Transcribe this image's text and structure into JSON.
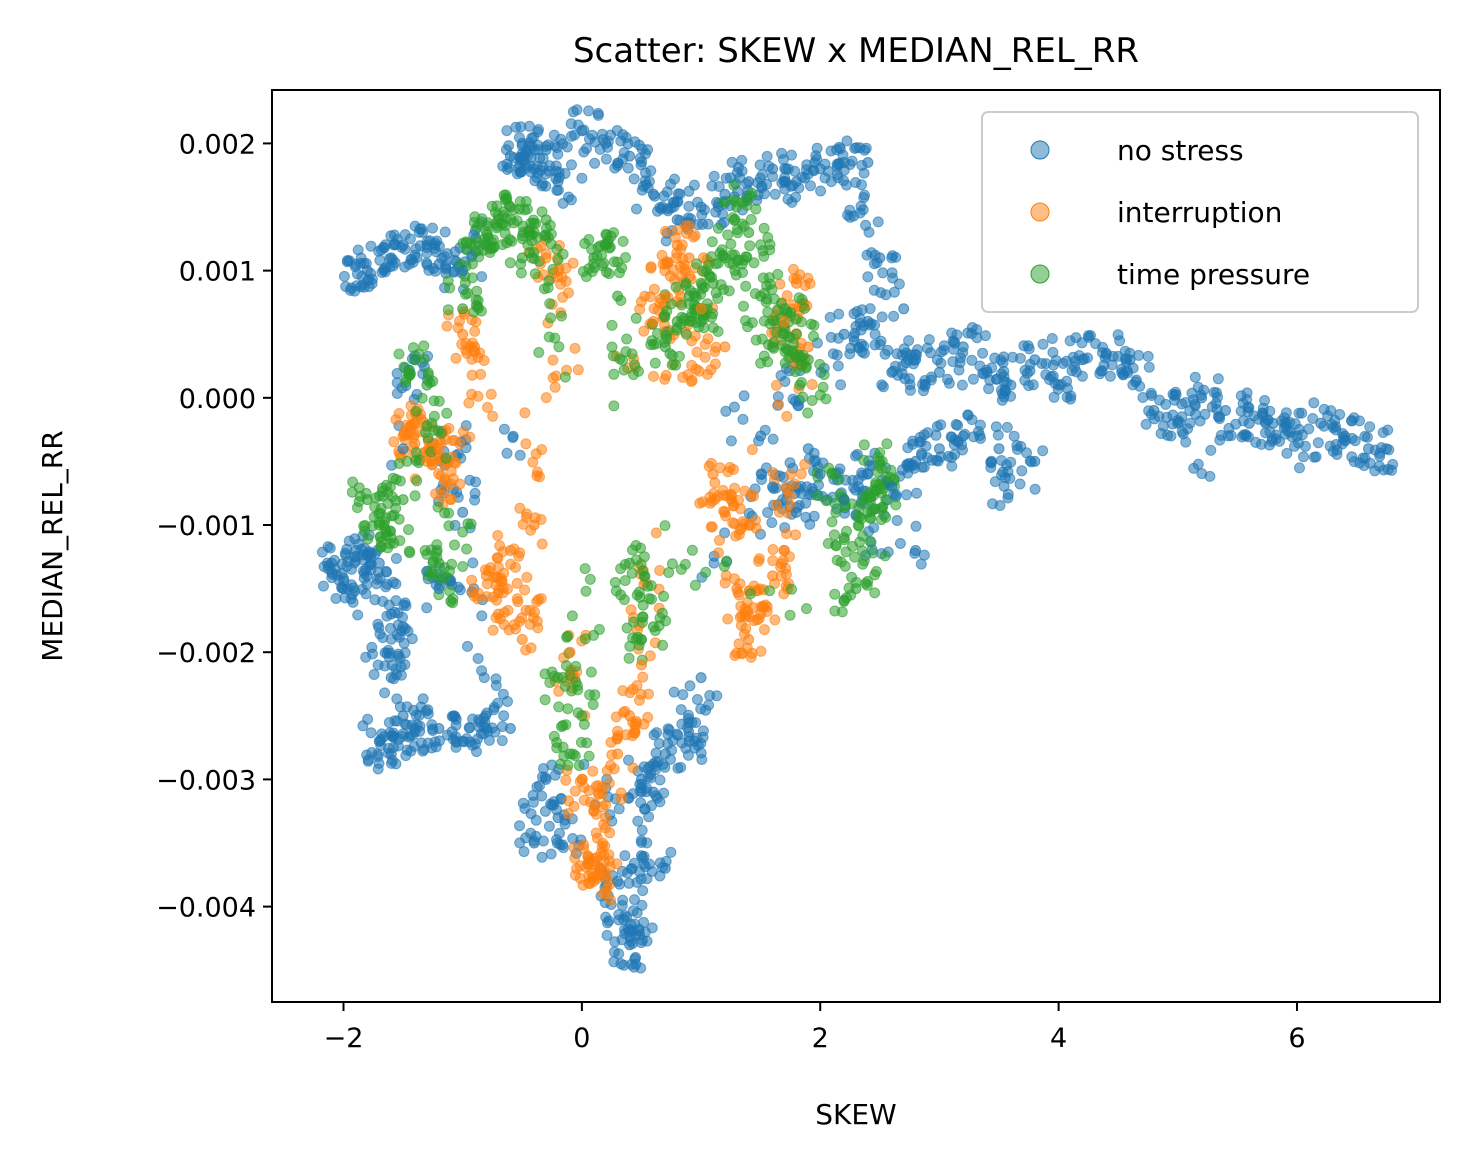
{
  "chart_data": {
    "type": "scatter",
    "title": "Scatter: SKEW x MEDIAN_REL_RR",
    "xlabel": "SKEW",
    "ylabel": "MEDIAN_REL_RR",
    "xlim": [
      -2.6,
      7.2
    ],
    "ylim": [
      -0.00475,
      0.00242
    ],
    "xticks": [
      -2,
      0,
      2,
      4,
      6
    ],
    "xtick_labels": [
      "−2",
      "0",
      "2",
      "4",
      "6"
    ],
    "yticks": [
      0.002,
      0.001,
      0.0,
      -0.001,
      -0.002,
      -0.003,
      -0.004
    ],
    "ytick_labels": [
      "0.002",
      "0.001",
      "0.000",
      "−0.001",
      "−0.002",
      "−0.003",
      "−0.004"
    ],
    "grid": false,
    "legend_position": "top-right",
    "series": [
      {
        "name": "no stress",
        "color": "#1f77b4",
        "points": [
          [
            -2.1,
            -0.0013
          ],
          [
            -2.0,
            -0.0015
          ],
          [
            -1.9,
            -0.0012
          ],
          [
            -1.8,
            -0.0014
          ],
          [
            -1.7,
            -0.0013
          ],
          [
            -1.6,
            -0.0017
          ],
          [
            -1.5,
            -0.0018
          ],
          [
            -1.7,
            -0.0027
          ],
          [
            -1.6,
            -0.0028
          ],
          [
            -1.5,
            -0.0025
          ],
          [
            -1.4,
            -0.0026
          ],
          [
            -1.2,
            -0.0026
          ],
          [
            -1.0,
            -0.0027
          ],
          [
            -0.8,
            -0.0026
          ],
          [
            -0.6,
            -0.0026
          ],
          [
            -1.9,
            0.00105
          ],
          [
            -1.8,
            0.001
          ],
          [
            -1.6,
            0.0011
          ],
          [
            -1.5,
            0.0012
          ],
          [
            -1.3,
            0.0012
          ],
          [
            -1.2,
            0.00105
          ],
          [
            -1.0,
            0.001
          ],
          [
            -0.6,
            0.0019
          ],
          [
            -0.5,
            0.002
          ],
          [
            -0.4,
            0.0018
          ],
          [
            -0.3,
            0.00195
          ],
          [
            -0.2,
            0.0017
          ],
          [
            0.0,
            0.0021
          ],
          [
            0.2,
            0.002
          ],
          [
            0.4,
            0.0019
          ],
          [
            0.6,
            0.0016
          ],
          [
            0.8,
            0.0014
          ],
          [
            1.0,
            0.0015
          ],
          [
            1.2,
            0.0016
          ],
          [
            1.4,
            0.0017
          ],
          [
            1.6,
            0.0018
          ],
          [
            1.8,
            0.0017
          ],
          [
            2.0,
            0.0018
          ],
          [
            2.2,
            0.00185
          ],
          [
            2.4,
            0.00185
          ],
          [
            2.2,
            0.0005
          ],
          [
            2.4,
            0.0006
          ],
          [
            2.6,
            0.0002
          ],
          [
            2.8,
            0.0003
          ],
          [
            3.0,
            0.0002
          ],
          [
            3.2,
            0.0004
          ],
          [
            3.4,
            0.0002
          ],
          [
            3.6,
            0.0001
          ],
          [
            3.8,
            0.0003
          ],
          [
            4.0,
            0.0001
          ],
          [
            4.2,
            0.0003
          ],
          [
            4.4,
            0.00035
          ],
          [
            4.6,
            0.0003
          ],
          [
            4.8,
            -0.0001
          ],
          [
            5.0,
            -0.0002
          ],
          [
            5.2,
            0.0
          ],
          [
            5.4,
            -0.0001
          ],
          [
            5.6,
            -0.0002
          ],
          [
            5.8,
            -0.0002
          ],
          [
            6.0,
            -0.0003
          ],
          [
            6.2,
            -0.0002
          ],
          [
            6.4,
            -0.0003
          ],
          [
            6.6,
            -0.0004
          ],
          [
            6.75,
            -0.0004
          ],
          [
            2.0,
            -0.0006
          ],
          [
            2.2,
            -0.0008
          ],
          [
            2.4,
            -0.0006
          ],
          [
            2.6,
            -0.0007
          ],
          [
            2.8,
            -0.0005
          ],
          [
            3.0,
            -0.0004
          ],
          [
            3.2,
            -0.0003
          ],
          [
            3.5,
            -0.0004
          ],
          [
            3.8,
            -0.0005
          ],
          [
            2.8,
            -0.0012
          ],
          [
            1.6,
            -0.0007
          ],
          [
            1.8,
            -0.0009
          ],
          [
            1.9,
            -0.0004
          ],
          [
            -0.4,
            -0.0035
          ],
          [
            -0.3,
            -0.003
          ],
          [
            -0.2,
            -0.0033
          ],
          [
            0.3,
            -0.0038
          ],
          [
            0.35,
            -0.0041
          ],
          [
            0.4,
            -0.0043
          ],
          [
            0.45,
            -0.0044
          ],
          [
            0.5,
            -0.003
          ],
          [
            0.6,
            -0.0031
          ],
          [
            0.7,
            -0.0028
          ],
          [
            0.9,
            -0.0027
          ],
          [
            1.0,
            -0.0022
          ],
          [
            0.5,
            -0.0036
          ],
          [
            0.7,
            -0.0037
          ],
          [
            -1.2,
            -0.0015
          ],
          [
            -1.0,
            -0.0009
          ],
          [
            -1.4,
            0.0003
          ],
          [
            -1.5,
            -0.0004
          ],
          [
            1.5,
            -0.0003
          ],
          [
            2.5,
            0.0011
          ],
          [
            2.7,
            0.0007
          ],
          [
            -1.6,
            -0.0022
          ]
        ]
      },
      {
        "name": "interruption",
        "color": "#ff7f0e",
        "points": [
          [
            -1.5,
            -0.0003
          ],
          [
            -1.4,
            -0.0002
          ],
          [
            -1.3,
            -0.0005
          ],
          [
            -1.2,
            -0.0004
          ],
          [
            -1.1,
            -0.0008
          ],
          [
            -1.0,
            0.0005
          ],
          [
            -0.9,
            0.0004
          ],
          [
            -0.8,
            -0.0014
          ],
          [
            -0.7,
            -0.0017
          ],
          [
            -0.6,
            -0.0012
          ],
          [
            -0.5,
            -0.0019
          ],
          [
            -0.4,
            -0.001
          ],
          [
            -0.3,
            0.0011
          ],
          [
            -0.2,
            0.001
          ],
          [
            -0.1,
            -0.002
          ],
          [
            0.0,
            -0.003
          ],
          [
            0.05,
            -0.0036
          ],
          [
            0.1,
            -0.0038
          ],
          [
            0.15,
            -0.0037
          ],
          [
            0.2,
            -0.0033
          ],
          [
            0.3,
            -0.0028
          ],
          [
            0.4,
            -0.0025
          ],
          [
            0.5,
            -0.0021
          ],
          [
            0.6,
            0.0006
          ],
          [
            0.7,
            0.0008
          ],
          [
            0.8,
            0.0012
          ],
          [
            0.9,
            0.0011
          ],
          [
            1.0,
            0.0007
          ],
          [
            1.1,
            -0.0006
          ],
          [
            1.2,
            -0.0009
          ],
          [
            1.3,
            -0.0015
          ],
          [
            1.4,
            -0.0019
          ],
          [
            1.5,
            -0.0017
          ],
          [
            1.6,
            -0.0014
          ],
          [
            1.7,
            -0.0012
          ],
          [
            1.8,
            0.0009
          ],
          [
            1.7,
            0.0006
          ],
          [
            1.9,
            0.0004
          ],
          [
            1.4,
            -0.001
          ],
          [
            1.2,
            0.0004
          ]
        ]
      },
      {
        "name": "time pressure",
        "color": "#2ca02c",
        "points": [
          [
            -1.8,
            -0.0008
          ],
          [
            -1.7,
            -0.001
          ],
          [
            -1.6,
            -0.0011
          ],
          [
            -1.5,
            -0.0008
          ],
          [
            -1.4,
            0.0003
          ],
          [
            -1.3,
            0.0001
          ],
          [
            -1.2,
            -0.0013
          ],
          [
            -1.1,
            -0.0016
          ],
          [
            -1.0,
            0.0007
          ],
          [
            -0.9,
            0.0012
          ],
          [
            -0.8,
            0.0013
          ],
          [
            -0.7,
            0.0014
          ],
          [
            -0.6,
            0.0015
          ],
          [
            -0.5,
            0.0011
          ],
          [
            -0.4,
            0.0013
          ],
          [
            -0.3,
            0.0014
          ],
          [
            -0.2,
            -0.0022
          ],
          [
            -0.1,
            -0.0028
          ],
          [
            0.0,
            -0.0025
          ],
          [
            0.1,
            0.0011
          ],
          [
            0.2,
            0.0012
          ],
          [
            0.3,
            0.0008
          ],
          [
            0.4,
            -0.0013
          ],
          [
            0.5,
            -0.0019
          ],
          [
            0.6,
            -0.0018
          ],
          [
            0.7,
            0.0004
          ],
          [
            0.8,
            0.0006
          ],
          [
            0.9,
            0.0008
          ],
          [
            1.0,
            0.0006
          ],
          [
            1.1,
            0.0009
          ],
          [
            1.2,
            0.0011
          ],
          [
            1.3,
            0.0015
          ],
          [
            1.4,
            0.0013
          ],
          [
            1.5,
            0.0008
          ],
          [
            1.6,
            0.0004
          ],
          [
            1.7,
            0.0007
          ],
          [
            1.8,
            0.0005
          ],
          [
            1.9,
            0.0003
          ],
          [
            2.1,
            -0.0006
          ],
          [
            2.2,
            -0.0011
          ],
          [
            2.3,
            -0.0015
          ],
          [
            2.4,
            -0.0009
          ],
          [
            2.5,
            -0.0005
          ],
          [
            2.55,
            -0.0008
          ],
          [
            2.2,
            -0.0016
          ]
        ]
      }
    ]
  }
}
